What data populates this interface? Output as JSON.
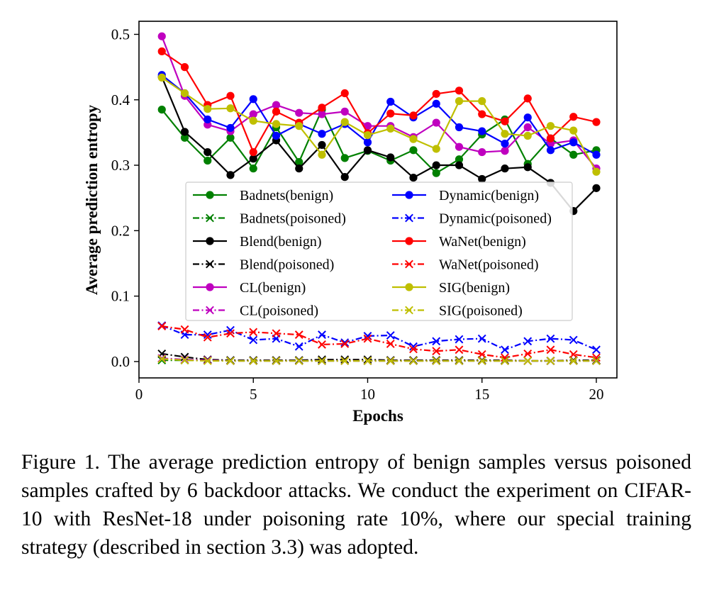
{
  "chart_data": {
    "type": "line",
    "xlabel": "Epochs",
    "ylabel": "Average prediction entropy",
    "xlim": [
      0,
      20.9
    ],
    "ylim": [
      -0.025,
      0.52
    ],
    "xticks": [
      "0",
      "5",
      "10",
      "15",
      "20"
    ],
    "yticks": [
      "0.0",
      "0.1",
      "0.2",
      "0.3",
      "0.4",
      "0.5"
    ],
    "legend_position": "center",
    "x": [
      1,
      2,
      3,
      4,
      5,
      6,
      7,
      8,
      9,
      10,
      11,
      12,
      13,
      14,
      15,
      16,
      17,
      18,
      19,
      20
    ],
    "series": [
      {
        "name": "Badnets(benign)",
        "color": "#008000",
        "marker": "o",
        "linestyle": "solid",
        "values": [
          0.385,
          0.342,
          0.307,
          0.342,
          0.295,
          0.358,
          0.305,
          0.385,
          0.311,
          0.322,
          0.307,
          0.323,
          0.288,
          0.309,
          0.347,
          0.37,
          0.302,
          0.341,
          0.316,
          0.323
        ]
      },
      {
        "name": "Badnets(poisoned)",
        "color": "#008000",
        "marker": "x",
        "linestyle": "dashdot",
        "values": [
          0.002,
          0.002,
          0.002,
          0.001,
          0.001,
          0.001,
          0.001,
          0.001,
          0.001,
          0.001,
          0.001,
          0.001,
          0.001,
          0.001,
          0.001,
          0.001,
          0.001,
          0.001,
          0.001,
          0.001
        ]
      },
      {
        "name": "Blend(benign)",
        "color": "#000000",
        "marker": "o",
        "linestyle": "solid",
        "values": [
          0.435,
          0.351,
          0.32,
          0.285,
          0.31,
          0.338,
          0.295,
          0.331,
          0.282,
          0.323,
          0.312,
          0.281,
          0.3,
          0.3,
          0.279,
          0.295,
          0.297,
          0.273,
          0.23,
          0.265
        ]
      },
      {
        "name": "Blend(poisoned)",
        "color": "#000000",
        "marker": "x",
        "linestyle": "dashdot",
        "values": [
          0.012,
          0.007,
          0.003,
          0.002,
          0.002,
          0.002,
          0.002,
          0.003,
          0.003,
          0.003,
          0.002,
          0.002,
          0.002,
          0.002,
          0.002,
          0.002,
          0.001,
          0.001,
          0.002,
          0.002
        ]
      },
      {
        "name": "CL(benign)",
        "color": "#bf00bf",
        "marker": "o",
        "linestyle": "solid",
        "values": [
          0.497,
          0.406,
          0.362,
          0.352,
          0.378,
          0.392,
          0.38,
          0.378,
          0.382,
          0.36,
          0.36,
          0.343,
          0.365,
          0.328,
          0.32,
          0.322,
          0.358,
          0.333,
          0.338,
          0.295
        ]
      },
      {
        "name": "CL(poisoned)",
        "color": "#bf00bf",
        "marker": "x",
        "linestyle": "dashdot",
        "values": [
          0.005,
          0.003,
          0.002,
          0.001,
          0.001,
          0.001,
          0.001,
          0.001,
          0.001,
          0.001,
          0.001,
          0.001,
          0.001,
          0.001,
          0.001,
          0.001,
          0.001,
          0.001,
          0.001,
          0.001
        ]
      },
      {
        "name": "Dynamic(benign)",
        "color": "#0000ff",
        "marker": "o",
        "linestyle": "solid",
        "values": [
          0.438,
          0.41,
          0.37,
          0.357,
          0.401,
          0.345,
          0.363,
          0.348,
          0.363,
          0.335,
          0.397,
          0.373,
          0.394,
          0.358,
          0.352,
          0.333,
          0.373,
          0.323,
          0.335,
          0.316
        ]
      },
      {
        "name": "Dynamic(poisoned)",
        "color": "#0000ff",
        "marker": "x",
        "linestyle": "dashdot",
        "values": [
          0.055,
          0.041,
          0.041,
          0.048,
          0.033,
          0.035,
          0.023,
          0.041,
          0.029,
          0.039,
          0.04,
          0.023,
          0.031,
          0.034,
          0.035,
          0.018,
          0.031,
          0.035,
          0.033,
          0.018
        ]
      },
      {
        "name": "WaNet(benign)",
        "color": "#ff0000",
        "marker": "o",
        "linestyle": "solid",
        "values": [
          0.474,
          0.45,
          0.392,
          0.406,
          0.32,
          0.382,
          0.365,
          0.388,
          0.41,
          0.349,
          0.379,
          0.376,
          0.409,
          0.414,
          0.378,
          0.367,
          0.402,
          0.341,
          0.374,
          0.366
        ]
      },
      {
        "name": "WaNet(poisoned)",
        "color": "#ff0000",
        "marker": "x",
        "linestyle": "dashdot",
        "values": [
          0.054,
          0.049,
          0.037,
          0.043,
          0.045,
          0.043,
          0.041,
          0.026,
          0.027,
          0.035,
          0.027,
          0.019,
          0.016,
          0.018,
          0.011,
          0.006,
          0.012,
          0.018,
          0.011,
          0.006
        ]
      },
      {
        "name": "SIG(benign)",
        "color": "#bfbf00",
        "marker": "o",
        "linestyle": "solid",
        "values": [
          0.434,
          0.41,
          0.386,
          0.387,
          0.368,
          0.363,
          0.36,
          0.316,
          0.366,
          0.346,
          0.356,
          0.34,
          0.325,
          0.398,
          0.398,
          0.348,
          0.345,
          0.36,
          0.353,
          0.29
        ]
      },
      {
        "name": "SIG(poisoned)",
        "color": "#bfbf00",
        "marker": "x",
        "linestyle": "dashdot",
        "values": [
          0.004,
          0.002,
          0.001,
          0.001,
          0.001,
          0.001,
          0.001,
          0.001,
          0.001,
          0.001,
          0.001,
          0.001,
          0.001,
          0.001,
          0.001,
          0.001,
          0.001,
          0.001,
          0.001,
          0.001
        ]
      }
    ]
  },
  "caption": "Figure 1. The average prediction entropy of benign samples versus poisoned samples crafted by 6 backdoor attacks. We conduct the experiment on CIFAR-10 with ResNet-18 under poisoning rate 10%, where our special training strategy (described in section 3.3) was adopted."
}
